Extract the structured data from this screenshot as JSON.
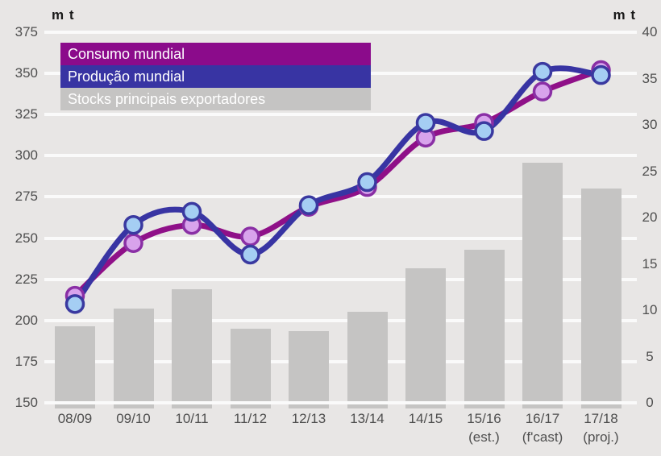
{
  "page": {
    "background": "#E8E6E5",
    "gridline_color": "#FAFAFA"
  },
  "left_unit": "m t",
  "right_unit": "m t",
  "legend": {
    "items": [
      {
        "label": "Consumo mundial",
        "color": "#8B0B8B",
        "text_color": "#FFFFFF"
      },
      {
        "label": "Produção mundial",
        "color": "#3834A3",
        "text_color": "#FFFFFF"
      },
      {
        "label": "Stocks principais exportadores",
        "color": "#C5C4C3",
        "text_color": "#FFFFFF"
      }
    ]
  },
  "chart_data": {
    "type": "combo-line-bar",
    "categories": [
      "08/09",
      "09/10",
      "10/11",
      "11/12",
      "12/13",
      "13/14",
      "14/15",
      "15/16",
      "16/17",
      "17/18"
    ],
    "category_sublabels": [
      "",
      "",
      "",
      "",
      "",
      "",
      "",
      "(est.)",
      "(f'cast)",
      "(proj.)"
    ],
    "series": [
      {
        "name": "Consumo mundial",
        "type": "line",
        "axis": "left",
        "color": "#8F1088",
        "marker_fill": "#D8A3EC",
        "marker_stroke": "#8A2FA5",
        "values": [
          215,
          247,
          258,
          251,
          269,
          281,
          311,
          320,
          339,
          352
        ]
      },
      {
        "name": "Produção mundial",
        "type": "line",
        "axis": "left",
        "color": "#3834A3",
        "marker_fill": "#A5CEF3",
        "marker_stroke": "#3A39A0",
        "values": [
          210,
          258,
          266,
          240,
          270,
          284,
          320,
          315,
          351,
          349
        ]
      },
      {
        "name": "Stocks principais exportadores",
        "type": "bar",
        "axis": "right",
        "color": "#C5C4C3",
        "values": [
          8.3,
          10.2,
          12.3,
          8.0,
          7.7,
          9.8,
          14.5,
          16.5,
          25.9,
          23.1
        ]
      }
    ],
    "left_axis": {
      "unit": "m t",
      "min": 150,
      "max": 375,
      "tick_step": 25,
      "ticks": [
        375,
        350,
        325,
        300,
        275,
        250,
        225,
        200,
        175,
        150
      ]
    },
    "right_axis": {
      "unit": "m t",
      "min": 0,
      "max": 40,
      "tick_step": 5,
      "ticks": [
        40,
        35,
        30,
        25,
        20,
        15,
        10,
        5,
        0
      ]
    },
    "grid": {
      "horizontal": true,
      "vertical": false
    },
    "legend_position": "top-left"
  }
}
